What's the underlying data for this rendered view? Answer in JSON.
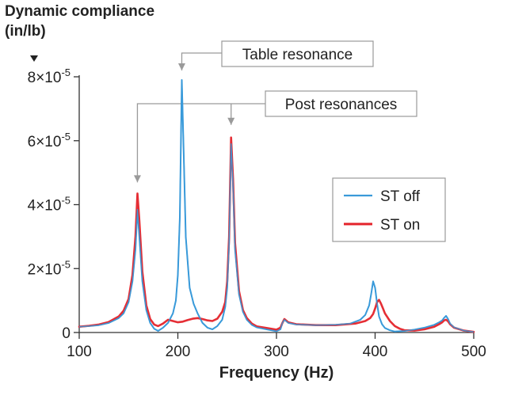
{
  "chart_data": {
    "type": "line",
    "ylabel_line1": "Dynamic compliance",
    "ylabel_line2": "(in/lb)",
    "xlabel": "Frequency (Hz)",
    "xlim": [
      100,
      500
    ],
    "ylim": [
      0,
      8e-05
    ],
    "xticks": [
      "100",
      "200",
      "300",
      "400",
      "500"
    ],
    "yticks": [
      {
        "value": 0,
        "mant": "0",
        "exp": ""
      },
      {
        "value": 2e-05,
        "mant": "2×10",
        "exp": "-5"
      },
      {
        "value": 4e-05,
        "mant": "4×10",
        "exp": "-5"
      },
      {
        "value": 6e-05,
        "mant": "6×10",
        "exp": "-5"
      },
      {
        "value": 8e-05,
        "mant": "8×10",
        "exp": "-5"
      }
    ],
    "annotations": {
      "table": {
        "text": "Table resonance",
        "x": 204
      },
      "post": {
        "text": "Post resonances",
        "x": [
          159,
          254
        ]
      }
    },
    "legend_position": "right",
    "series": [
      {
        "name": "ST off",
        "color": "#3a9ad9",
        "x": [
          100,
          110,
          120,
          130,
          140,
          145,
          150,
          154,
          157,
          159,
          161,
          164,
          168,
          172,
          176,
          180,
          185,
          190,
          195,
          198,
          200,
          202,
          204,
          206,
          208,
          212,
          216,
          220,
          225,
          230,
          235,
          240,
          245,
          248,
          250,
          252,
          254,
          256,
          258,
          262,
          266,
          270,
          275,
          280,
          290,
          300,
          304,
          306,
          308,
          312,
          320,
          340,
          360,
          375,
          385,
          390,
          394,
          396,
          398,
          400,
          402,
          404,
          407,
          410,
          415,
          420,
          430,
          440,
          450,
          460,
          465,
          468,
          470,
          472,
          474,
          476,
          480,
          490,
          500
        ],
        "y": [
          1.8e-06,
          2e-06,
          2.3e-06,
          3e-06,
          4.5e-06,
          6e-06,
          9.5e-06,
          1.6e-05,
          2.6e-05,
          3.85e-05,
          3e-05,
          1.6e-05,
          7e-06,
          3e-06,
          1.2e-06,
          5e-07,
          1.5e-06,
          3e-06,
          6e-06,
          1e-05,
          1.8e-05,
          3.6e-05,
          7.9e-05,
          5.5e-05,
          3e-05,
          1.4e-05,
          9e-06,
          6e-06,
          3e-06,
          1.5e-06,
          1e-06,
          2e-06,
          4e-06,
          8e-06,
          1.4e-05,
          2.8e-05,
          5.9e-05,
          4.6e-05,
          2.6e-05,
          1.2e-05,
          6.5e-06,
          4e-06,
          2.4e-06,
          1.6e-06,
          1e-06,
          4e-07,
          1e-06,
          3e-06,
          4e-06,
          3e-06,
          2.5e-06,
          2.3e-06,
          2.4e-06,
          2.8e-06,
          4e-06,
          5.5e-06,
          8.5e-06,
          1.2e-05,
          1.6e-05,
          1.4e-05,
          9e-06,
          5e-06,
          2.6e-06,
          1.4e-06,
          7e-07,
          3e-07,
          5e-07,
          9e-07,
          1.5e-06,
          2.4e-06,
          3.2e-06,
          3.8e-06,
          4.6e-06,
          5.2e-06,
          4.2e-06,
          2.8e-06,
          1.6e-06,
          6e-07,
          2e-07
        ]
      },
      {
        "name": "ST on",
        "color": "#e4232a",
        "x": [
          100,
          110,
          120,
          130,
          140,
          145,
          150,
          154,
          157,
          159,
          161,
          164,
          168,
          172,
          176,
          180,
          185,
          190,
          195,
          200,
          205,
          210,
          215,
          220,
          225,
          230,
          235,
          240,
          245,
          248,
          250,
          252,
          254,
          256,
          258,
          262,
          266,
          270,
          275,
          280,
          290,
          300,
          304,
          306,
          308,
          312,
          320,
          340,
          360,
          380,
          390,
          395,
          398,
          400,
          402,
          404,
          406,
          408,
          410,
          415,
          420,
          425,
          430,
          440,
          450,
          460,
          465,
          468,
          470,
          472,
          474,
          476,
          480,
          490,
          500
        ],
        "y": [
          1.8e-06,
          2.1e-06,
          2.5e-06,
          3.3e-06,
          5e-06,
          6.8e-06,
          1.05e-05,
          1.8e-05,
          3e-05,
          4.35e-05,
          3.5e-05,
          1.9e-05,
          8.5e-06,
          4.2e-06,
          2.5e-06,
          2e-06,
          2.8e-06,
          4e-06,
          3.6e-06,
          3.2e-06,
          3.4e-06,
          3.9e-06,
          4.3e-06,
          4.5e-06,
          4.2e-06,
          3.8e-06,
          3.6e-06,
          4.3e-06,
          6.5e-06,
          9.5e-06,
          1.6e-05,
          3e-05,
          6.1e-05,
          4.8e-05,
          2.8e-05,
          1.3e-05,
          7e-06,
          4.5e-06,
          2.8e-06,
          1.9e-06,
          1.4e-06,
          9e-07,
          1.5e-06,
          3e-06,
          4.2e-06,
          3.2e-06,
          2.6e-06,
          2.3e-06,
          2.3e-06,
          2.8e-06,
          3.6e-06,
          4.5e-06,
          5.8e-06,
          7.5e-06,
          9.5e-06,
          1.02e-05,
          9e-06,
          7.5e-06,
          6e-06,
          3.6e-06,
          2e-06,
          1.2e-06,
          7e-07,
          6e-07,
          1e-06,
          1.8e-06,
          2.6e-06,
          3.2e-06,
          3.8e-06,
          4e-06,
          3.5e-06,
          2.6e-06,
          1.5e-06,
          6e-07,
          2e-07
        ]
      }
    ]
  }
}
